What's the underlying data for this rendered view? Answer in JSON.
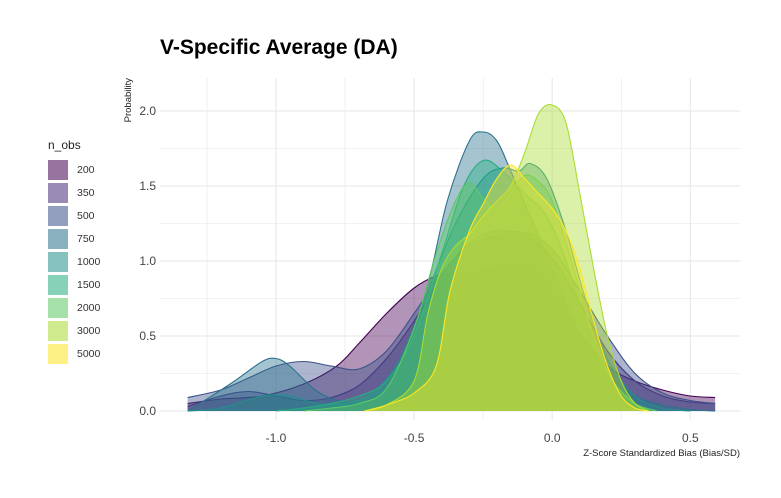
{
  "chart_data": {
    "type": "area",
    "title": "V-Specific Average (DA)",
    "xlabel": "Z-Score Standardized Bias (Bias/SD)",
    "ylabel": "Probability",
    "xlim": [
      -1.42,
      0.68
    ],
    "ylim": [
      -0.06,
      2.22
    ],
    "x_ticks": [
      -1.0,
      -0.5,
      0.0,
      0.5
    ],
    "x_tick_labels": [
      "-1.0",
      "-0.5",
      "0.0",
      "0.5"
    ],
    "y_ticks": [
      0.0,
      0.5,
      1.0,
      1.5,
      2.0
    ],
    "y_tick_labels": [
      "0.0",
      "0.5",
      "1.0",
      "1.5",
      "2.0"
    ],
    "grid": true,
    "legend": {
      "title": "n_obs",
      "position": "left"
    },
    "series": [
      {
        "name": "200",
        "color": "#440154",
        "fill": "#440154",
        "points": [
          [
            -1.32,
            0.05
          ],
          [
            -1.2,
            0.08
          ],
          [
            -1.05,
            0.1
          ],
          [
            -0.9,
            0.18
          ],
          [
            -0.78,
            0.3
          ],
          [
            -0.7,
            0.45
          ],
          [
            -0.6,
            0.65
          ],
          [
            -0.5,
            0.82
          ],
          [
            -0.42,
            0.9
          ],
          [
            -0.35,
            0.92
          ],
          [
            -0.3,
            0.92
          ],
          [
            -0.2,
            0.95
          ],
          [
            -0.12,
            0.97
          ],
          [
            -0.05,
            0.9
          ],
          [
            0.0,
            0.78
          ],
          [
            0.1,
            0.52
          ],
          [
            0.2,
            0.3
          ],
          [
            0.3,
            0.2
          ],
          [
            0.4,
            0.14
          ],
          [
            0.5,
            0.1
          ],
          [
            0.59,
            0.09
          ]
        ]
      },
      {
        "name": "350",
        "color": "#472D7B",
        "fill": "#472D7B",
        "points": [
          [
            -1.32,
            0.03
          ],
          [
            -1.2,
            0.1
          ],
          [
            -1.1,
            0.13
          ],
          [
            -1.0,
            0.1
          ],
          [
            -0.9,
            0.07
          ],
          [
            -0.8,
            0.09
          ],
          [
            -0.7,
            0.17
          ],
          [
            -0.6,
            0.35
          ],
          [
            -0.5,
            0.6
          ],
          [
            -0.4,
            0.9
          ],
          [
            -0.3,
            1.12
          ],
          [
            -0.2,
            1.2
          ],
          [
            -0.1,
            1.17
          ],
          [
            0.0,
            1.02
          ],
          [
            0.1,
            0.72
          ],
          [
            0.2,
            0.4
          ],
          [
            0.3,
            0.2
          ],
          [
            0.4,
            0.1
          ],
          [
            0.5,
            0.06
          ],
          [
            0.59,
            0.05
          ]
        ]
      },
      {
        "name": "500",
        "color": "#3B528B",
        "fill": "#3B528B",
        "points": [
          [
            -1.32,
            0.09
          ],
          [
            -1.2,
            0.14
          ],
          [
            -1.1,
            0.22
          ],
          [
            -1.0,
            0.3
          ],
          [
            -0.9,
            0.33
          ],
          [
            -0.8,
            0.3
          ],
          [
            -0.7,
            0.28
          ],
          [
            -0.6,
            0.4
          ],
          [
            -0.5,
            0.65
          ],
          [
            -0.4,
            0.92
          ],
          [
            -0.3,
            1.1
          ],
          [
            -0.2,
            1.17
          ],
          [
            -0.1,
            1.19
          ],
          [
            0.0,
            1.08
          ],
          [
            0.1,
            0.8
          ],
          [
            0.2,
            0.5
          ],
          [
            0.3,
            0.25
          ],
          [
            0.4,
            0.12
          ],
          [
            0.5,
            0.07
          ],
          [
            0.59,
            0.05
          ]
        ]
      },
      {
        "name": "750",
        "color": "#2C728E",
        "fill": "#2C728E",
        "points": [
          [
            -1.32,
            0.0
          ],
          [
            -1.25,
            0.08
          ],
          [
            -1.15,
            0.2
          ],
          [
            -1.05,
            0.33
          ],
          [
            -1.0,
            0.35
          ],
          [
            -0.95,
            0.3
          ],
          [
            -0.85,
            0.13
          ],
          [
            -0.75,
            0.06
          ],
          [
            -0.65,
            0.08
          ],
          [
            -0.55,
            0.3
          ],
          [
            -0.45,
            0.85
          ],
          [
            -0.38,
            1.4
          ],
          [
            -0.3,
            1.8
          ],
          [
            -0.25,
            1.86
          ],
          [
            -0.2,
            1.8
          ],
          [
            -0.15,
            1.6
          ],
          [
            -0.08,
            1.3
          ],
          [
            0.0,
            0.95
          ],
          [
            0.1,
            0.52
          ],
          [
            0.2,
            0.25
          ],
          [
            0.3,
            0.1
          ],
          [
            0.4,
            0.04
          ],
          [
            0.5,
            0.01
          ],
          [
            0.59,
            0.0
          ]
        ]
      },
      {
        "name": "1000",
        "color": "#21908C",
        "fill": "#21908C",
        "points": [
          [
            -1.32,
            0.0
          ],
          [
            -1.2,
            0.02
          ],
          [
            -1.05,
            0.1
          ],
          [
            -0.95,
            0.1
          ],
          [
            -0.85,
            0.05
          ],
          [
            -0.75,
            0.05
          ],
          [
            -0.65,
            0.12
          ],
          [
            -0.55,
            0.35
          ],
          [
            -0.45,
            0.8
          ],
          [
            -0.35,
            1.25
          ],
          [
            -0.25,
            1.55
          ],
          [
            -0.18,
            1.62
          ],
          [
            -0.12,
            1.6
          ],
          [
            -0.08,
            1.65
          ],
          [
            -0.02,
            1.55
          ],
          [
            0.05,
            1.2
          ],
          [
            0.12,
            0.75
          ],
          [
            0.2,
            0.35
          ],
          [
            0.3,
            0.1
          ],
          [
            0.4,
            0.02
          ],
          [
            0.5,
            0.0
          ]
        ]
      },
      {
        "name": "1500",
        "color": "#27AD81",
        "fill": "#27AD81",
        "points": [
          [
            -1.0,
            0.0
          ],
          [
            -0.9,
            0.02
          ],
          [
            -0.8,
            0.05
          ],
          [
            -0.7,
            0.1
          ],
          [
            -0.6,
            0.2
          ],
          [
            -0.5,
            0.5
          ],
          [
            -0.4,
            1.05
          ],
          [
            -0.32,
            1.5
          ],
          [
            -0.25,
            1.67
          ],
          [
            -0.18,
            1.6
          ],
          [
            -0.1,
            1.45
          ],
          [
            -0.02,
            1.3
          ],
          [
            0.05,
            1.0
          ],
          [
            0.12,
            0.6
          ],
          [
            0.2,
            0.25
          ],
          [
            0.3,
            0.05
          ],
          [
            0.38,
            0.0
          ]
        ]
      },
      {
        "name": "2000",
        "color": "#5DC863",
        "fill": "#5DC863",
        "points": [
          [
            -0.9,
            0.0
          ],
          [
            -0.8,
            0.02
          ],
          [
            -0.7,
            0.05
          ],
          [
            -0.6,
            0.15
          ],
          [
            -0.5,
            0.55
          ],
          [
            -0.42,
            1.05
          ],
          [
            -0.35,
            1.4
          ],
          [
            -0.3,
            1.52
          ],
          [
            -0.25,
            1.42
          ],
          [
            -0.2,
            1.35
          ],
          [
            -0.15,
            1.45
          ],
          [
            -0.1,
            1.57
          ],
          [
            -0.05,
            1.53
          ],
          [
            0.0,
            1.4
          ],
          [
            0.07,
            1.0
          ],
          [
            0.15,
            0.5
          ],
          [
            0.22,
            0.2
          ],
          [
            0.3,
            0.05
          ],
          [
            0.38,
            0.0
          ]
        ]
      },
      {
        "name": "3000",
        "color": "#AADC32",
        "fill": "#AADC32",
        "points": [
          [
            -0.68,
            0.0
          ],
          [
            -0.6,
            0.04
          ],
          [
            -0.5,
            0.2
          ],
          [
            -0.45,
            0.65
          ],
          [
            -0.4,
            0.95
          ],
          [
            -0.35,
            1.1
          ],
          [
            -0.3,
            1.18
          ],
          [
            -0.25,
            1.3
          ],
          [
            -0.2,
            1.4
          ],
          [
            -0.15,
            1.5
          ],
          [
            -0.1,
            1.72
          ],
          [
            -0.05,
            1.98
          ],
          [
            0.0,
            2.04
          ],
          [
            0.05,
            1.92
          ],
          [
            0.1,
            1.45
          ],
          [
            0.15,
            0.95
          ],
          [
            0.2,
            0.5
          ],
          [
            0.25,
            0.2
          ],
          [
            0.3,
            0.05
          ],
          [
            0.35,
            0.0
          ]
        ]
      },
      {
        "name": "5000",
        "color": "#FDE725",
        "fill": "#FDE725",
        "points": [
          [
            -0.68,
            0.0
          ],
          [
            -0.6,
            0.04
          ],
          [
            -0.5,
            0.12
          ],
          [
            -0.42,
            0.3
          ],
          [
            -0.37,
            0.8
          ],
          [
            -0.3,
            1.2
          ],
          [
            -0.25,
            1.38
          ],
          [
            -0.2,
            1.55
          ],
          [
            -0.15,
            1.64
          ],
          [
            -0.1,
            1.55
          ],
          [
            -0.05,
            1.45
          ],
          [
            0.0,
            1.35
          ],
          [
            0.05,
            1.2
          ],
          [
            0.1,
            0.95
          ],
          [
            0.15,
            0.6
          ],
          [
            0.2,
            0.3
          ],
          [
            0.25,
            0.1
          ],
          [
            0.3,
            0.02
          ],
          [
            0.35,
            0.0
          ]
        ]
      }
    ],
    "fill_opacity": 0.42,
    "top_fill_color": "#A3C639"
  }
}
